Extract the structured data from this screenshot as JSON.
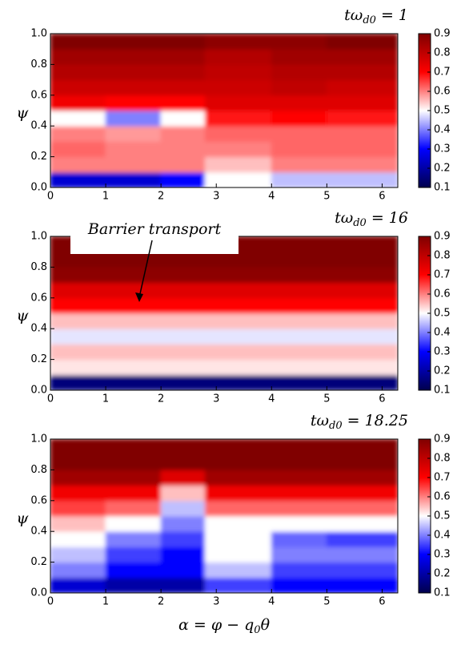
{
  "chart_data": [
    {
      "type": "heatmap",
      "title": {
        "main": "tω",
        "sub": "d0",
        "rest": " = 1"
      },
      "ylabel": "ψ",
      "xlim": [
        0,
        6.283
      ],
      "ylim": [
        0,
        1
      ],
      "xticks": [
        0,
        1,
        2,
        3,
        4,
        5,
        6
      ],
      "yticks": [
        {
          "value": 0,
          "label": "0.0"
        },
        {
          "value": 0.2,
          "label": "0.2"
        },
        {
          "value": 0.4,
          "label": "0.4"
        },
        {
          "value": 0.6,
          "label": "0.6"
        },
        {
          "value": 0.8,
          "label": "0.8"
        },
        {
          "value": 1,
          "label": "1.0"
        }
      ],
      "x": [
        0,
        1,
        2,
        2.8,
        4,
        5,
        6.283
      ],
      "y": [
        0,
        0.1,
        0.2,
        0.3,
        0.4,
        0.5,
        0.6,
        0.7,
        0.8,
        0.9,
        1
      ],
      "z": [
        [
          0.25,
          0.25,
          0.3,
          0.5,
          0.45,
          0.45
        ],
        [
          0.6,
          0.6,
          0.6,
          0.55,
          0.6,
          0.6
        ],
        [
          0.62,
          0.6,
          0.6,
          0.6,
          0.62,
          0.62
        ],
        [
          0.6,
          0.58,
          0.6,
          0.62,
          0.62,
          0.62
        ],
        [
          0.5,
          0.4,
          0.5,
          0.68,
          0.7,
          0.68
        ],
        [
          0.72,
          0.7,
          0.7,
          0.75,
          0.75,
          0.75
        ],
        [
          0.78,
          0.78,
          0.78,
          0.78,
          0.8,
          0.78
        ],
        [
          0.82,
          0.82,
          0.82,
          0.8,
          0.82,
          0.82
        ],
        [
          0.85,
          0.85,
          0.85,
          0.82,
          0.85,
          0.85
        ],
        [
          0.9,
          0.9,
          0.9,
          0.88,
          0.88,
          0.9
        ]
      ],
      "colormap": [
        "#00004d",
        "#0000ff",
        "#ffffff",
        "#ff0000",
        "#800000"
      ],
      "clim": [
        0.1,
        0.9
      ],
      "cticks": [
        0.1,
        0.2,
        0.3,
        0.4,
        0.5,
        0.6,
        0.7,
        0.8,
        0.9
      ]
    },
    {
      "type": "heatmap",
      "title": {
        "main": "tω",
        "sub": "d0",
        "rest": " = 16"
      },
      "ylabel": "ψ",
      "xlim": [
        0,
        6.283
      ],
      "ylim": [
        0,
        1
      ],
      "xticks": [
        0,
        1,
        2,
        3,
        4,
        5,
        6
      ],
      "yticks": [
        {
          "value": 0,
          "label": "0.0"
        },
        {
          "value": 0.2,
          "label": "0.2"
        },
        {
          "value": 0.4,
          "label": "0.4"
        },
        {
          "value": 0.6,
          "label": "0.6"
        },
        {
          "value": 0.8,
          "label": "0.8"
        },
        {
          "value": 1,
          "label": "1.0"
        }
      ],
      "x": [
        0,
        6.283
      ],
      "y": [
        0,
        0.1,
        0.2,
        0.3,
        0.4,
        0.5,
        0.6,
        0.7,
        0.8,
        0.9,
        1
      ],
      "z": [
        [
          0.15
        ],
        [
          0.52
        ],
        [
          0.55
        ],
        [
          0.48
        ],
        [
          0.55
        ],
        [
          0.7
        ],
        [
          0.75
        ],
        [
          0.88
        ],
        [
          0.9
        ],
        [
          0.9
        ]
      ],
      "colormap": [
        "#00004d",
        "#0000ff",
        "#ffffff",
        "#ff0000",
        "#800000"
      ],
      "clim": [
        0.1,
        0.9
      ],
      "cticks": [
        0.1,
        0.2,
        0.3,
        0.4,
        0.5,
        0.6,
        0.7,
        0.8,
        0.9
      ],
      "annotation": "Barrier transport"
    },
    {
      "type": "heatmap",
      "title": {
        "main": "tω",
        "sub": "d0",
        "rest": " = 18.25"
      },
      "ylabel": "ψ",
      "xlabel": {
        "main": "α = φ − q",
        "sub": "0",
        "rest": "θ"
      },
      "xlim": [
        0,
        6.283
      ],
      "ylim": [
        0,
        1
      ],
      "xticks": [
        0,
        1,
        2,
        3,
        4,
        5,
        6
      ],
      "yticks": [
        {
          "value": 0,
          "label": "0.0"
        },
        {
          "value": 0.2,
          "label": "0.2"
        },
        {
          "value": 0.4,
          "label": "0.4"
        },
        {
          "value": 0.6,
          "label": "0.6"
        },
        {
          "value": 0.8,
          "label": "0.8"
        },
        {
          "value": 1,
          "label": "1.0"
        }
      ],
      "x": [
        0,
        1,
        2,
        2.8,
        4,
        5,
        6.283
      ],
      "y": [
        0,
        0.1,
        0.2,
        0.3,
        0.4,
        0.5,
        0.6,
        0.7,
        0.8,
        0.9,
        1
      ],
      "z": [
        [
          0.25,
          0.2,
          0.2,
          0.35,
          0.3,
          0.3
        ],
        [
          0.4,
          0.3,
          0.3,
          0.45,
          0.35,
          0.35
        ],
        [
          0.45,
          0.35,
          0.3,
          0.5,
          0.4,
          0.4
        ],
        [
          0.5,
          0.4,
          0.35,
          0.5,
          0.38,
          0.35
        ],
        [
          0.55,
          0.5,
          0.4,
          0.5,
          0.5,
          0.5
        ],
        [
          0.65,
          0.62,
          0.45,
          0.62,
          0.62,
          0.62
        ],
        [
          0.72,
          0.72,
          0.55,
          0.72,
          0.72,
          0.72
        ],
        [
          0.85,
          0.85,
          0.75,
          0.85,
          0.85,
          0.85
        ],
        [
          0.9,
          0.9,
          0.9,
          0.9,
          0.9,
          0.9
        ],
        [
          0.9,
          0.9,
          0.9,
          0.9,
          0.9,
          0.9
        ]
      ],
      "colormap": [
        "#00004d",
        "#0000ff",
        "#ffffff",
        "#ff0000",
        "#800000"
      ],
      "clim": [
        0.1,
        0.9
      ],
      "cticks": [
        0.1,
        0.2,
        0.3,
        0.4,
        0.5,
        0.6,
        0.7,
        0.8,
        0.9
      ]
    }
  ]
}
